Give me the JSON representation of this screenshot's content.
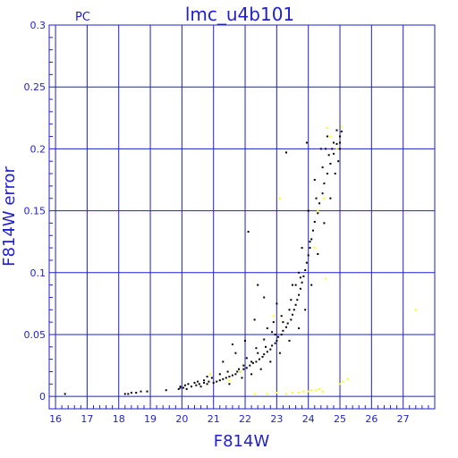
{
  "chart_data": {
    "type": "scatter",
    "title": "lmc_u4b101",
    "corner_label": "PC",
    "xlabel": "F814W",
    "ylabel": "F814W error",
    "xlim": [
      15.8,
      28.0
    ],
    "ylim": [
      -0.01,
      0.3
    ],
    "x_ticks": [
      16,
      17,
      18,
      19,
      20,
      21,
      22,
      23,
      24,
      25,
      26,
      27
    ],
    "y_ticks": [
      0,
      0.05,
      0.1,
      0.15,
      0.2,
      0.25,
      0.3
    ],
    "y_tick_labels": [
      "0",
      "0.05",
      "0.1",
      "0.15",
      "0.2",
      "0.25",
      "0.3"
    ],
    "grid": true,
    "colors": {
      "axis": "#1f1fd0",
      "grid": "#1f1fd0",
      "series_main": "#000000",
      "series_flagged": "#ffff00"
    },
    "series": [
      {
        "color": "#000000",
        "points": [
          [
            16.3,
            0.002
          ],
          [
            18.2,
            0.002
          ],
          [
            18.3,
            0.002
          ],
          [
            18.4,
            0.003
          ],
          [
            18.55,
            0.003
          ],
          [
            18.7,
            0.004
          ],
          [
            18.9,
            0.004
          ],
          [
            19.5,
            0.005
          ],
          [
            19.9,
            0.006
          ],
          [
            19.95,
            0.008
          ],
          [
            20.05,
            0.007
          ],
          [
            20.15,
            0.006
          ],
          [
            20.3,
            0.008
          ],
          [
            20.4,
            0.011
          ],
          [
            20.45,
            0.009
          ],
          [
            20.55,
            0.01
          ],
          [
            20.6,
            0.008
          ],
          [
            20.7,
            0.011
          ],
          [
            20.8,
            0.01
          ],
          [
            20.85,
            0.012
          ],
          [
            21.0,
            0.011
          ],
          [
            21.1,
            0.012
          ],
          [
            21.2,
            0.013
          ],
          [
            21.3,
            0.014
          ],
          [
            21.4,
            0.015
          ],
          [
            21.5,
            0.016
          ],
          [
            21.6,
            0.017
          ],
          [
            21.7,
            0.018
          ],
          [
            21.75,
            0.02
          ],
          [
            21.85,
            0.02
          ],
          [
            21.95,
            0.022
          ],
          [
            22.05,
            0.023
          ],
          [
            22.15,
            0.025
          ],
          [
            22.25,
            0.027
          ],
          [
            22.35,
            0.028
          ],
          [
            22.45,
            0.03
          ],
          [
            22.55,
            0.032
          ],
          [
            22.6,
            0.034
          ],
          [
            22.7,
            0.036
          ],
          [
            22.8,
            0.038
          ],
          [
            22.85,
            0.041
          ],
          [
            22.95,
            0.043
          ],
          [
            23.0,
            0.045
          ],
          [
            23.05,
            0.048
          ],
          [
            23.15,
            0.05
          ],
          [
            23.2,
            0.053
          ],
          [
            23.3,
            0.056
          ],
          [
            23.35,
            0.059
          ],
          [
            23.45,
            0.062
          ],
          [
            23.5,
            0.066
          ],
          [
            23.55,
            0.07
          ],
          [
            23.6,
            0.074
          ],
          [
            23.65,
            0.078
          ],
          [
            23.7,
            0.082
          ],
          [
            23.75,
            0.087
          ],
          [
            23.8,
            0.092
          ],
          [
            23.85,
            0.097
          ],
          [
            23.9,
            0.102
          ],
          [
            23.95,
            0.108
          ],
          [
            24.0,
            0.114
          ],
          [
            24.05,
            0.12
          ],
          [
            24.1,
            0.127
          ],
          [
            24.15,
            0.134
          ],
          [
            24.2,
            0.141
          ],
          [
            24.3,
            0.148
          ],
          [
            24.35,
            0.156
          ],
          [
            24.45,
            0.164
          ],
          [
            24.5,
            0.172
          ],
          [
            24.6,
            0.18
          ],
          [
            24.7,
            0.188
          ],
          [
            24.8,
            0.196
          ],
          [
            24.9,
            0.204
          ],
          [
            25.0,
            0.21
          ],
          [
            25.05,
            0.214
          ],
          [
            21.5,
            0.01
          ],
          [
            21.9,
            0.015
          ],
          [
            22.2,
            0.018
          ],
          [
            22.5,
            0.022
          ],
          [
            22.8,
            0.028
          ],
          [
            23.1,
            0.035
          ],
          [
            23.4,
            0.045
          ],
          [
            23.7,
            0.055
          ],
          [
            23.9,
            0.07
          ],
          [
            24.1,
            0.09
          ],
          [
            24.3,
            0.115
          ],
          [
            24.5,
            0.14
          ],
          [
            24.7,
            0.16
          ],
          [
            24.85,
            0.18
          ],
          [
            25.0,
            0.2
          ],
          [
            22.1,
            0.133
          ],
          [
            22.4,
            0.09
          ],
          [
            22.6,
            0.08
          ],
          [
            23.3,
            0.197
          ],
          [
            23.95,
            0.205
          ],
          [
            22.0,
            0.045
          ],
          [
            21.7,
            0.035
          ],
          [
            21.6,
            0.042
          ],
          [
            22.3,
            0.062
          ],
          [
            23.0,
            0.075
          ],
          [
            22.9,
            0.06
          ],
          [
            22.7,
            0.055
          ],
          [
            21.3,
            0.028
          ],
          [
            20.8,
            0.016
          ],
          [
            23.5,
            0.09
          ],
          [
            23.8,
            0.12
          ],
          [
            24.0,
            0.15
          ],
          [
            24.2,
            0.175
          ],
          [
            24.4,
            0.2
          ],
          [
            24.6,
            0.21
          ],
          [
            24.8,
            0.205
          ],
          [
            24.95,
            0.19
          ],
          [
            24.65,
            0.195
          ],
          [
            24.55,
            0.2
          ],
          [
            23.7,
            0.1
          ],
          [
            23.6,
            0.09
          ],
          [
            23.4,
            0.07
          ],
          [
            23.2,
            0.06
          ],
          [
            22.95,
            0.05
          ],
          [
            22.65,
            0.04
          ],
          [
            22.4,
            0.035
          ],
          [
            22.2,
            0.028
          ],
          [
            21.95,
            0.025
          ],
          [
            21.8,
            0.022
          ],
          [
            21.45,
            0.02
          ],
          [
            21.2,
            0.018
          ],
          [
            20.95,
            0.015
          ],
          [
            20.7,
            0.013
          ],
          [
            20.5,
            0.012
          ],
          [
            20.2,
            0.01
          ],
          [
            20.1,
            0.009
          ],
          [
            19.95,
            0.007
          ],
          [
            22.05,
            0.031
          ],
          [
            22.35,
            0.039
          ],
          [
            22.6,
            0.046
          ],
          [
            22.85,
            0.052
          ],
          [
            23.15,
            0.065
          ],
          [
            23.45,
            0.078
          ],
          [
            23.75,
            0.096
          ],
          [
            24.05,
            0.125
          ],
          [
            24.25,
            0.16
          ],
          [
            24.45,
            0.185
          ],
          [
            24.75,
            0.2
          ],
          [
            25.0,
            0.205
          ],
          [
            24.9,
            0.215
          ]
        ]
      },
      {
        "color": "#ffff00",
        "points": [
          [
            22.3,
            0.002
          ],
          [
            22.7,
            0.002
          ],
          [
            23.0,
            0.003
          ],
          [
            23.3,
            0.002
          ],
          [
            23.5,
            0.003
          ],
          [
            23.7,
            0.003
          ],
          [
            23.85,
            0.004
          ],
          [
            24.0,
            0.004
          ],
          [
            24.1,
            0.005
          ],
          [
            24.25,
            0.005
          ],
          [
            24.35,
            0.006
          ],
          [
            24.45,
            0.004
          ],
          [
            25.0,
            0.01
          ],
          [
            25.1,
            0.012
          ],
          [
            25.25,
            0.014
          ],
          [
            27.4,
            0.07
          ],
          [
            24.6,
            0.217
          ],
          [
            24.7,
            0.21
          ],
          [
            24.9,
            0.2
          ],
          [
            25.05,
            0.218
          ],
          [
            24.5,
            0.16
          ],
          [
            24.3,
            0.15
          ],
          [
            23.1,
            0.16
          ],
          [
            24.2,
            0.12
          ],
          [
            24.55,
            0.095
          ],
          [
            21.5,
            0.013
          ],
          [
            21.85,
            0.02
          ],
          [
            20.9,
            0.018
          ],
          [
            22.9,
            0.065
          ]
        ]
      }
    ]
  }
}
